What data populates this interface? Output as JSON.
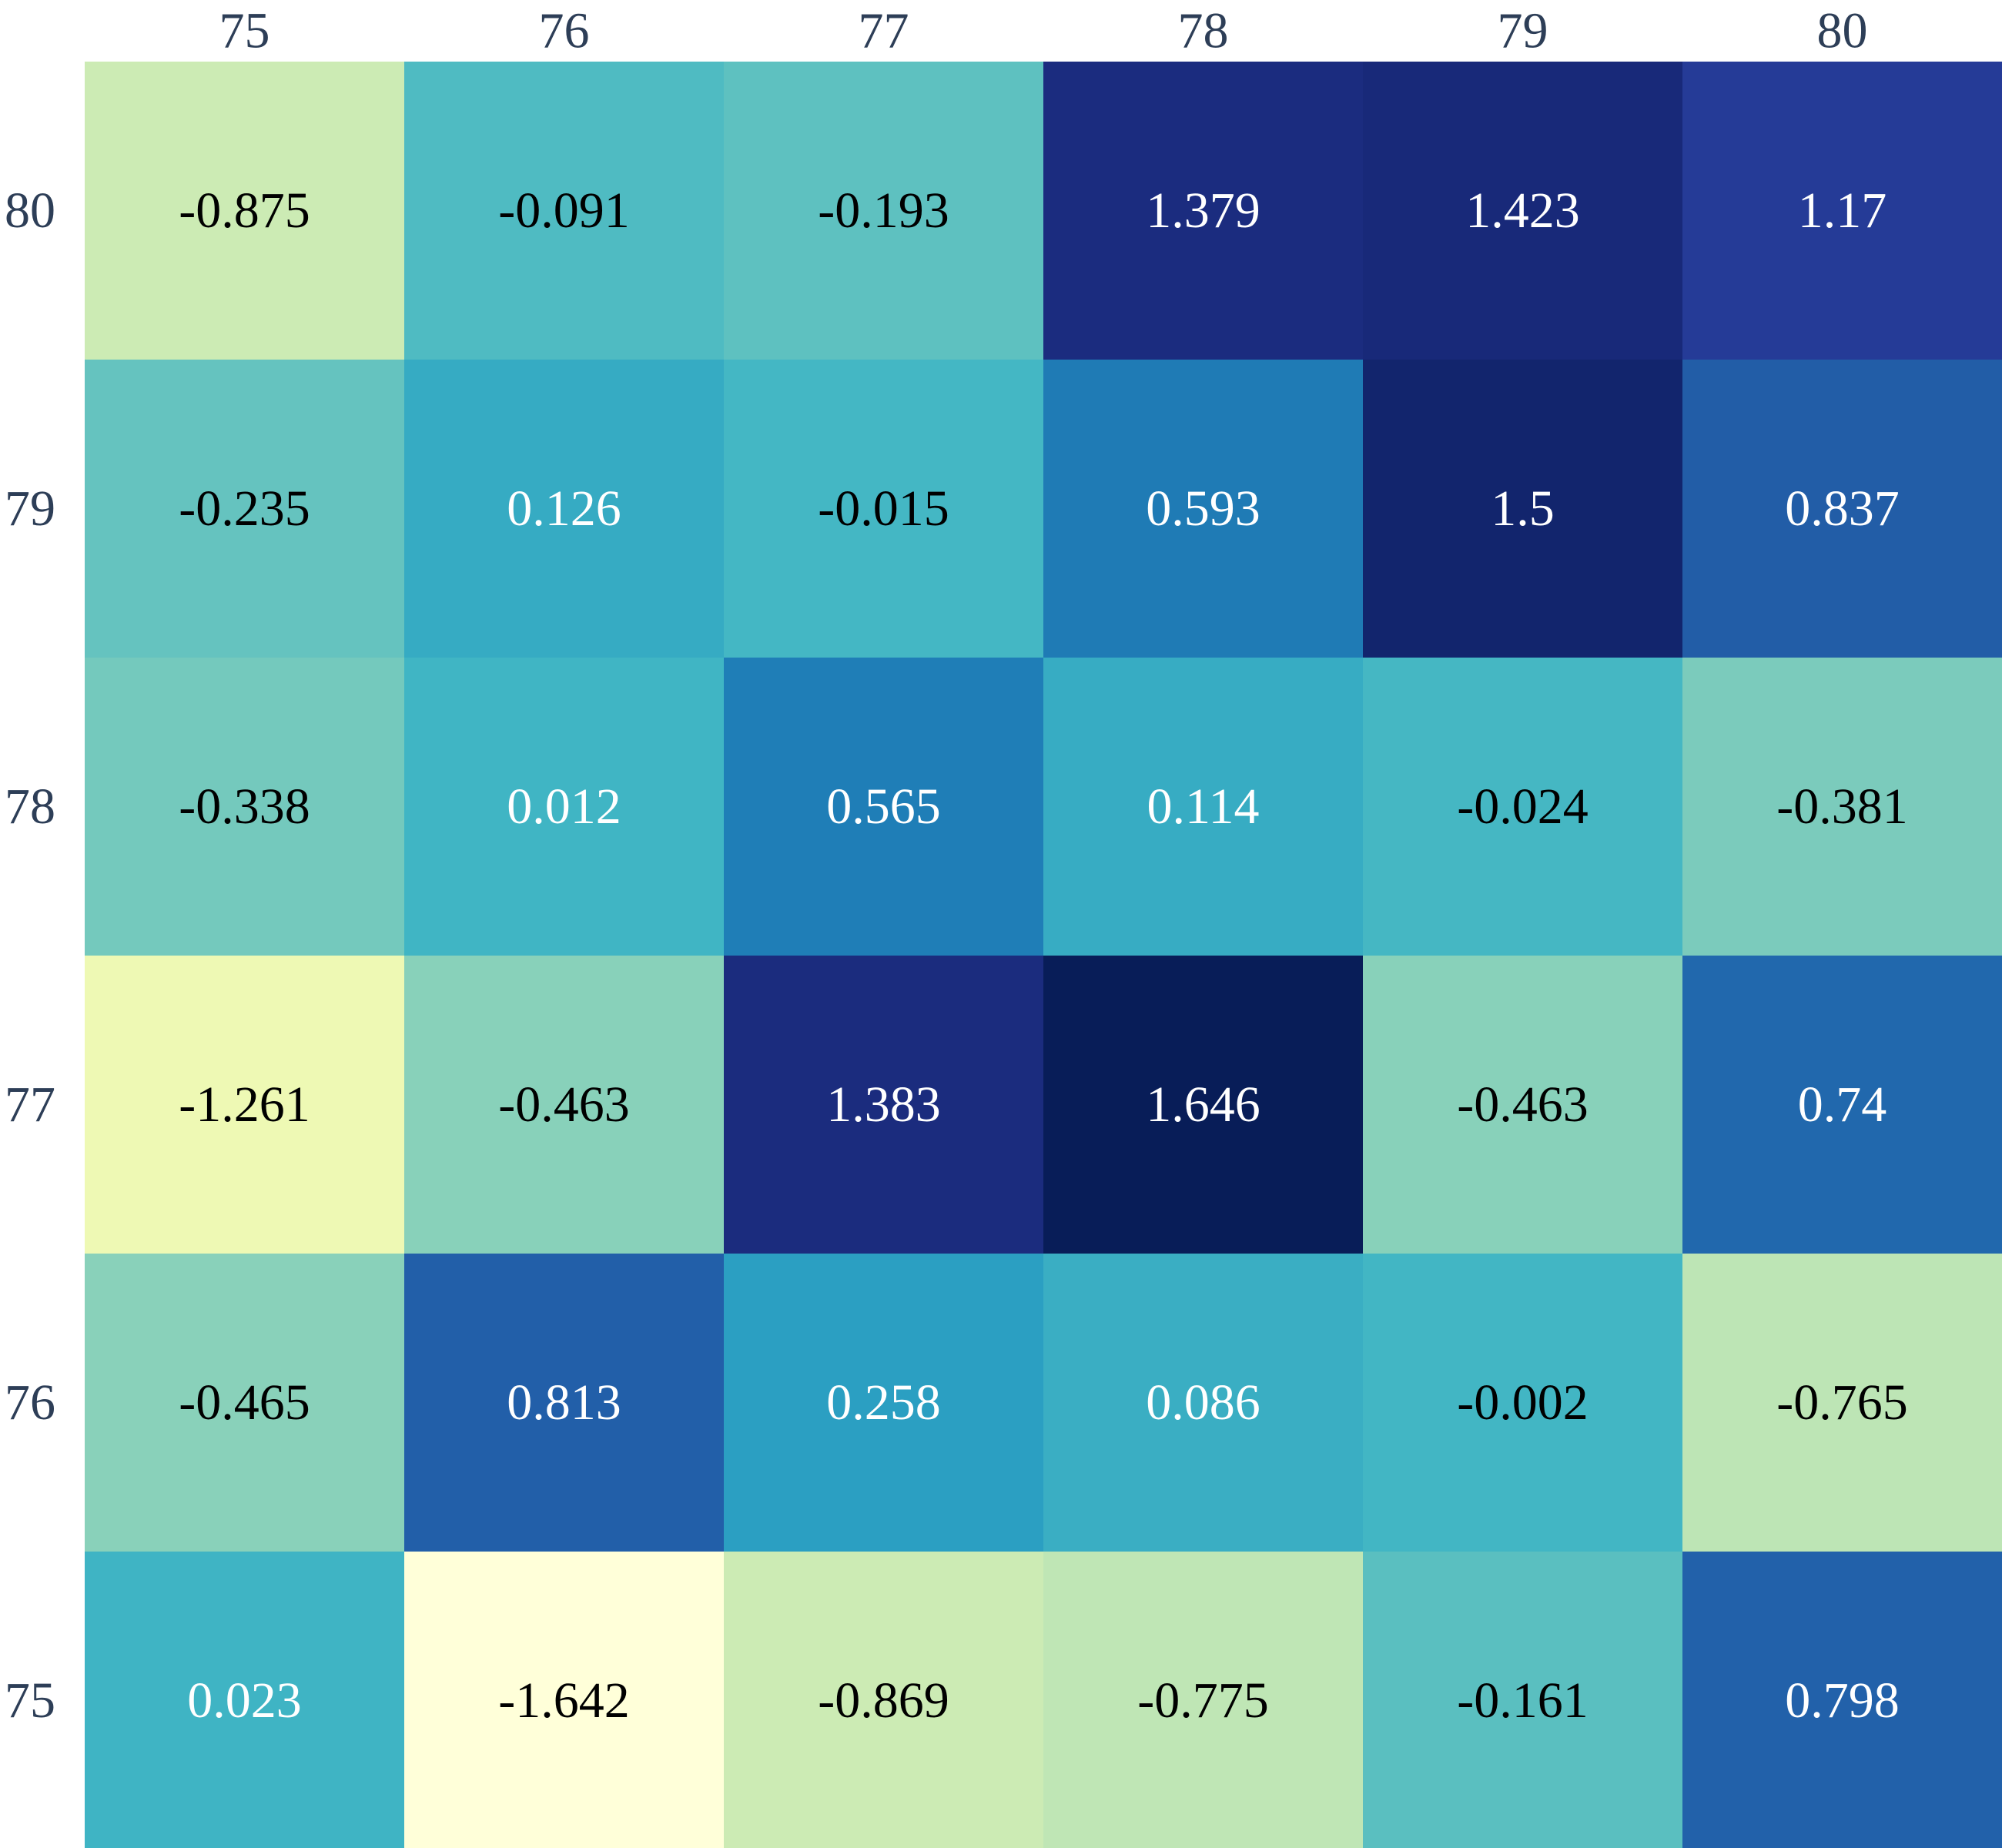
{
  "chart_data": {
    "type": "heatmap",
    "x_categories": [
      "75",
      "76",
      "77",
      "78",
      "79",
      "80"
    ],
    "y_categories": [
      "80",
      "79",
      "78",
      "77",
      "76",
      "75"
    ],
    "x_tick_position": "top",
    "y_tick_position": "left",
    "colormap": "YlGnBu",
    "value_range": [
      -1.642,
      1.646
    ],
    "values": [
      [
        -0.875,
        -0.091,
        -0.193,
        1.379,
        1.423,
        1.17
      ],
      [
        -0.235,
        0.126,
        -0.015,
        0.593,
        1.5,
        0.837
      ],
      [
        -0.338,
        0.012,
        0.565,
        0.114,
        -0.024,
        -0.381
      ],
      [
        -1.261,
        -0.463,
        1.383,
        1.646,
        -0.463,
        0.74
      ],
      [
        -0.465,
        0.813,
        0.258,
        0.086,
        -0.002,
        -0.765
      ],
      [
        0.023,
        -1.642,
        -0.869,
        -0.775,
        -0.161,
        0.798
      ]
    ],
    "cell_labels": [
      [
        "-0.875",
        "-0.091",
        "-0.193",
        "1.379",
        "1.423",
        "1.17"
      ],
      [
        "-0.235",
        "0.126",
        "-0.015",
        "0.593",
        "1.5",
        "0.837"
      ],
      [
        "-0.338",
        "0.012",
        "0.565",
        "0.114",
        "-0.024",
        "-0.381"
      ],
      [
        "-1.261",
        "-0.463",
        "1.383",
        "1.646",
        "-0.463",
        "0.74"
      ],
      [
        "-0.465",
        "0.813",
        "0.258",
        "0.086",
        "-0.002",
        "-0.765"
      ],
      [
        "0.023",
        "-1.642",
        "-0.869",
        "-0.775",
        "-0.161",
        "0.798"
      ]
    ],
    "label_colors": [
      [
        "#000000",
        "#000000",
        "#000000",
        "#ffffff",
        "#ffffff",
        "#ffffff"
      ],
      [
        "#000000",
        "#ffffff",
        "#000000",
        "#ffffff",
        "#ffffff",
        "#ffffff"
      ],
      [
        "#000000",
        "#ffffff",
        "#ffffff",
        "#ffffff",
        "#000000",
        "#000000"
      ],
      [
        "#000000",
        "#000000",
        "#ffffff",
        "#ffffff",
        "#000000",
        "#ffffff"
      ],
      [
        "#000000",
        "#ffffff",
        "#ffffff",
        "#ffffff",
        "#000000",
        "#000000"
      ],
      [
        "#ffffff",
        "#000000",
        "#000000",
        "#000000",
        "#000000",
        "#ffffff"
      ]
    ],
    "tick_label_color": "#2d3e57",
    "title": "",
    "xlabel": "",
    "ylabel": "",
    "grid": false,
    "colorbar": false
  }
}
